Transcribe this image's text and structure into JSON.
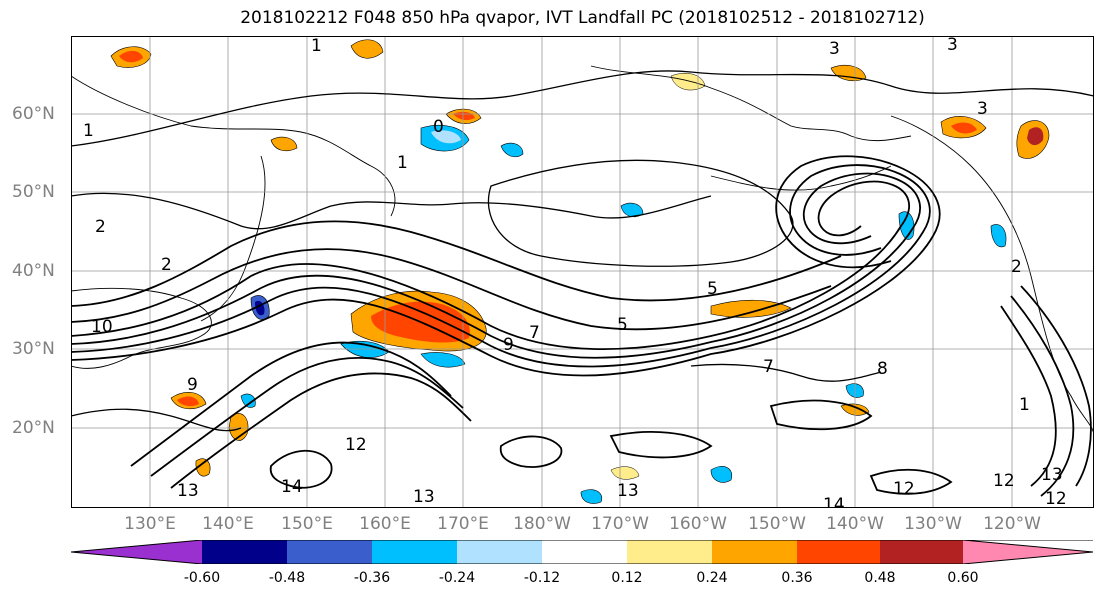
{
  "title": "2018102212 F048 850 hPa qvapor, IVT Landfall PC (2018102512 - 2018102712)",
  "lat_labels": [
    "60°N",
    "50°N",
    "40°N",
    "30°N",
    "20°N"
  ],
  "lon_labels": [
    "130°E",
    "140°E",
    "150°E",
    "160°E",
    "170°E",
    "180°W",
    "170°W",
    "160°W",
    "150°W",
    "140°W",
    "130°W",
    "120°W"
  ],
  "colorbar": {
    "colors": [
      "#9b30d0",
      "#00008b",
      "#3a5fcd",
      "#00bfff",
      "#b0e2ff",
      "#ffffff",
      "#ffec8b",
      "#ffa500",
      "#ff4500",
      "#b22222",
      "#ff88b0"
    ],
    "ticks": [
      "-0.60",
      "-0.48",
      "-0.36",
      "-0.24",
      "-0.12",
      "0.12",
      "0.24",
      "0.36",
      "0.48",
      "0.60"
    ]
  },
  "contour_labels": [
    "1",
    "1",
    "2",
    "3",
    "3",
    "1",
    "0",
    "2",
    "2",
    "5",
    "7",
    "9",
    "9",
    "5",
    "7",
    "8",
    "13",
    "12",
    "14",
    "13",
    "13",
    "14",
    "12",
    "12",
    "13",
    "1",
    "3",
    "10",
    "12"
  ]
}
